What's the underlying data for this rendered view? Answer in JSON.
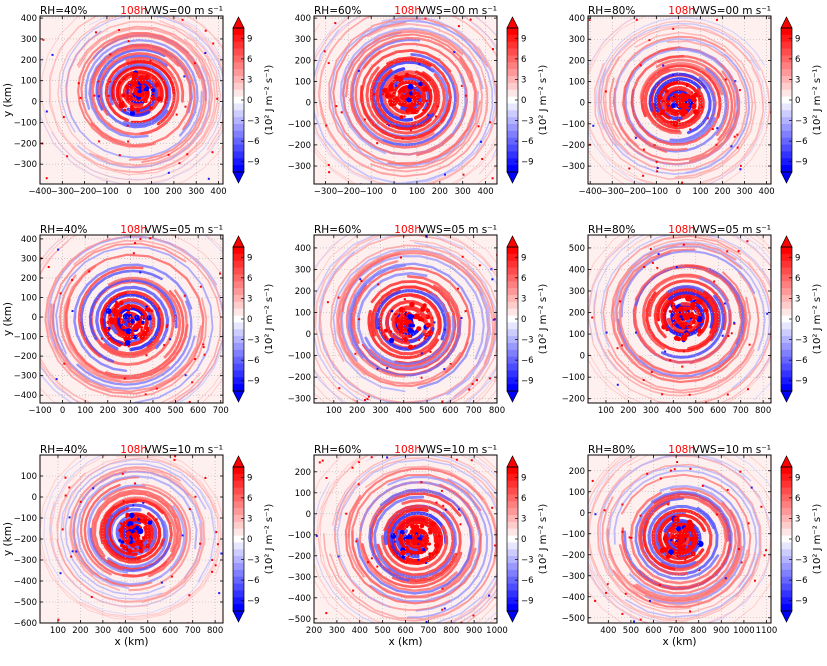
{
  "chart_data": {
    "type": "heatmap",
    "colorbar": {
      "label": "(10² J m⁻² s⁻¹)",
      "ticks": [
        9,
        6,
        3,
        0,
        -3,
        -6,
        -9
      ],
      "range": [
        -10.5,
        10.5
      ],
      "colors": {
        "positive": "#ff0000",
        "negative": "#0000ff",
        "zero": "#ffffff"
      }
    },
    "time_label": "108h",
    "time_color": "#ff0000",
    "panels": [
      {
        "rh": "RH=40%",
        "vws": "VWS=00 m s⁻¹",
        "xlim": [
          -400,
          420
        ],
        "ylim": [
          -395,
          410
        ],
        "xticks": [
          -400,
          -300,
          -200,
          -100,
          0,
          100,
          200,
          300,
          400
        ],
        "yticks": [
          -300,
          -200,
          -100,
          0,
          100,
          200,
          300,
          400
        ],
        "xlabel": "",
        "ylabel": "y (km)",
        "center": [
          40,
          40
        ],
        "extent": 350
      },
      {
        "rh": "RH=60%",
        "vws": "VWS=00 m s⁻¹",
        "xlim": [
          -350,
          450
        ],
        "ylim": [
          -385,
          410
        ],
        "xticks": [
          -300,
          -200,
          -100,
          0,
          100,
          200,
          300,
          400
        ],
        "yticks": [
          -300,
          -200,
          -100,
          0,
          100,
          200,
          300,
          400
        ],
        "xlabel": "",
        "ylabel": "",
        "center": [
          60,
          30
        ],
        "extent": 380
      },
      {
        "rh": "RH=80%",
        "vws": "VWS=00 m s⁻¹",
        "xlim": [
          -410,
          420
        ],
        "ylim": [
          -385,
          410
        ],
        "xticks": [
          -400,
          -300,
          -200,
          -100,
          0,
          100,
          200,
          300,
          400
        ],
        "yticks": [
          -300,
          -200,
          -100,
          0,
          100,
          200,
          300,
          400
        ],
        "xlabel": "",
        "ylabel": "",
        "center": [
          0,
          0
        ],
        "extent": 350
      },
      {
        "rh": "RH=40%",
        "vws": "VWS=05 m s⁻¹",
        "xlim": [
          -100,
          710
        ],
        "ylim": [
          -440,
          420
        ],
        "xticks": [
          -100,
          0,
          100,
          200,
          300,
          400,
          500,
          600,
          700
        ],
        "yticks": [
          -400,
          -300,
          -200,
          -100,
          0,
          100,
          200,
          300,
          400
        ],
        "xlabel": "",
        "ylabel": "y (km)",
        "center": [
          300,
          -20
        ],
        "extent": 400
      },
      {
        "rh": "RH=60%",
        "vws": "VWS=05 m s⁻¹",
        "xlim": [
          15,
          800
        ],
        "ylim": [
          -320,
          460
        ],
        "xticks": [
          100,
          200,
          300,
          400,
          500,
          600,
          700,
          800
        ],
        "yticks": [
          -300,
          -200,
          -100,
          0,
          100,
          200,
          300,
          400
        ],
        "xlabel": "",
        "ylabel": "",
        "center": [
          420,
          50
        ],
        "extent": 380
      },
      {
        "rh": "RH=80%",
        "vws": "VWS=05 m s⁻¹",
        "xlim": [
          20,
          835
        ],
        "ylim": [
          -220,
          560
        ],
        "xticks": [
          100,
          200,
          300,
          400,
          500,
          600,
          700,
          800
        ],
        "yticks": [
          -200,
          -100,
          0,
          100,
          200,
          300,
          400,
          500
        ],
        "xlabel": "",
        "ylabel": "",
        "center": [
          450,
          180
        ],
        "extent": 380
      },
      {
        "rh": "RH=40%",
        "vws": "VWS=10 m s⁻¹",
        "xlim": [
          20,
          835
        ],
        "ylim": [
          -600,
          200
        ],
        "xticks": [
          100,
          200,
          300,
          400,
          500,
          600,
          700,
          800
        ],
        "yticks": [
          -600,
          -500,
          -400,
          -300,
          -200,
          -100,
          0,
          100
        ],
        "xlabel": "x (km)",
        "ylabel": "y (km)",
        "center": [
          440,
          -170
        ],
        "extent": 320
      },
      {
        "rh": "RH=60%",
        "vws": "VWS=10 m s⁻¹",
        "xlim": [
          200,
          1000
        ],
        "ylim": [
          -520,
          280
        ],
        "xticks": [
          200,
          300,
          400,
          500,
          600,
          700,
          800,
          900,
          1000
        ],
        "yticks": [
          -500,
          -400,
          -300,
          -200,
          -100,
          0,
          100,
          200
        ],
        "xlabel": "x (km)",
        "ylabel": "",
        "center": [
          650,
          -120
        ],
        "extent": 380
      },
      {
        "rh": "RH=80%",
        "vws": "VWS=10 m s⁻¹",
        "xlim": [
          310,
          1120
        ],
        "ylim": [
          -525,
          275
        ],
        "xticks": [
          400,
          500,
          600,
          700,
          800,
          900,
          1000,
          1100
        ],
        "yticks": [
          -500,
          -400,
          -300,
          -200,
          -100,
          0,
          100,
          200
        ],
        "xlabel": "x (km)",
        "ylabel": "",
        "center": [
          720,
          -120
        ],
        "extent": 360
      }
    ]
  }
}
